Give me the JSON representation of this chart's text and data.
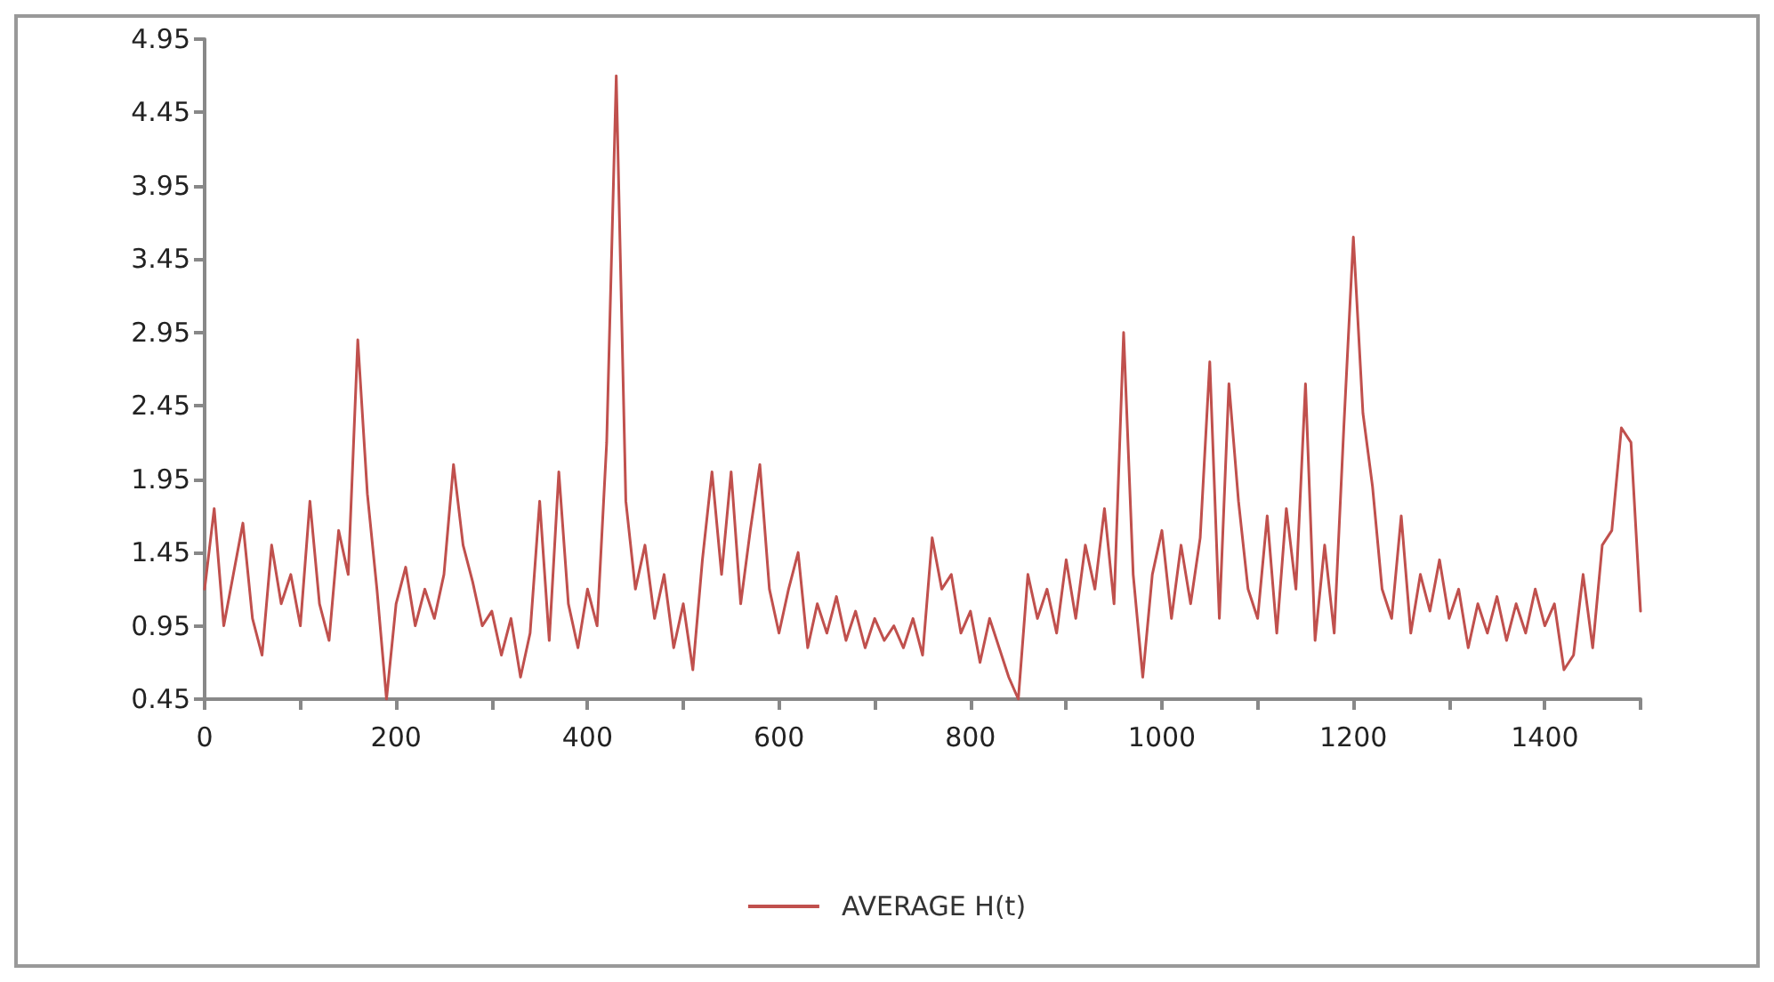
{
  "chart_data": {
    "type": "line",
    "x": [
      0,
      10,
      20,
      30,
      40,
      50,
      60,
      70,
      80,
      90,
      100,
      110,
      120,
      130,
      140,
      150,
      160,
      170,
      180,
      190,
      200,
      210,
      220,
      230,
      240,
      250,
      260,
      270,
      280,
      290,
      300,
      310,
      320,
      330,
      340,
      350,
      360,
      370,
      380,
      390,
      400,
      410,
      420,
      430,
      440,
      450,
      460,
      470,
      480,
      490,
      500,
      510,
      520,
      530,
      540,
      550,
      560,
      570,
      580,
      590,
      600,
      610,
      620,
      630,
      640,
      650,
      660,
      670,
      680,
      690,
      700,
      710,
      720,
      730,
      740,
      750,
      760,
      770,
      780,
      790,
      800,
      810,
      820,
      830,
      840,
      850,
      860,
      870,
      880,
      890,
      900,
      910,
      920,
      930,
      940,
      950,
      960,
      970,
      980,
      990,
      1000,
      1010,
      1020,
      1030,
      1040,
      1050,
      1060,
      1070,
      1080,
      1090,
      1100,
      1110,
      1120,
      1130,
      1140,
      1150,
      1160,
      1170,
      1180,
      1190,
      1200,
      1210,
      1220,
      1230,
      1240,
      1250,
      1260,
      1270,
      1280,
      1290,
      1300,
      1310,
      1320,
      1330,
      1340,
      1350,
      1360,
      1370,
      1380,
      1390,
      1400,
      1410,
      1420,
      1430,
      1440,
      1450,
      1460,
      1470,
      1480,
      1490,
      1500
    ],
    "series": [
      {
        "name": "AVERAGE H(t)",
        "color": "#c0504d",
        "values": [
          1.2,
          1.75,
          0.95,
          1.3,
          1.65,
          1.0,
          0.75,
          1.5,
          1.1,
          1.3,
          0.95,
          1.8,
          1.1,
          0.85,
          1.6,
          1.3,
          2.9,
          1.85,
          1.2,
          0.45,
          1.1,
          1.35,
          0.95,
          1.2,
          1.0,
          1.3,
          2.05,
          1.5,
          1.25,
          0.95,
          1.05,
          0.75,
          1.0,
          0.6,
          0.9,
          1.8,
          0.85,
          2.0,
          1.1,
          0.8,
          1.2,
          0.95,
          2.2,
          4.7,
          1.8,
          1.2,
          1.5,
          1.0,
          1.3,
          0.8,
          1.1,
          0.65,
          1.4,
          2.0,
          1.3,
          2.0,
          1.1,
          1.6,
          2.05,
          1.2,
          0.9,
          1.2,
          1.45,
          0.8,
          1.1,
          0.9,
          1.15,
          0.85,
          1.05,
          0.8,
          1.0,
          0.85,
          0.95,
          0.8,
          1.0,
          0.75,
          1.55,
          1.2,
          1.3,
          0.9,
          1.05,
          0.7,
          1.0,
          0.8,
          0.6,
          0.45,
          1.3,
          1.0,
          1.2,
          0.9,
          1.4,
          1.0,
          1.5,
          1.2,
          1.75,
          1.1,
          2.95,
          1.3,
          0.6,
          1.3,
          1.6,
          1.0,
          1.5,
          1.1,
          1.55,
          2.75,
          1.0,
          2.6,
          1.8,
          1.2,
          1.0,
          1.7,
          0.9,
          1.75,
          1.2,
          2.6,
          0.85,
          1.5,
          0.9,
          2.3,
          3.6,
          2.4,
          1.9,
          1.2,
          1.0,
          1.7,
          0.9,
          1.3,
          1.05,
          1.4,
          1.0,
          1.2,
          0.8,
          1.1,
          0.9,
          1.15,
          0.85,
          1.1,
          0.9,
          1.2,
          0.95,
          1.1,
          0.65,
          0.75,
          1.3,
          0.8,
          1.5,
          1.6,
          2.3,
          2.2,
          1.05
        ]
      }
    ],
    "xlim": [
      0,
      1500
    ],
    "xticks": [
      0,
      {
        "value": 100,
        "label": null
      },
      200,
      {
        "value": 300,
        "label": null
      },
      400,
      {
        "value": 500,
        "label": null
      },
      600,
      {
        "value": 700,
        "label": null
      },
      800,
      {
        "value": 900,
        "label": null
      },
      1000,
      {
        "value": 1100,
        "label": null
      },
      1200,
      {
        "value": 1300,
        "label": null
      },
      1400,
      {
        "value": 1500,
        "label": null
      }
    ],
    "ylim": [
      0.45,
      4.95
    ],
    "yticks": [
      0.45,
      0.95,
      1.45,
      1.95,
      2.45,
      2.95,
      3.45,
      3.95,
      4.45,
      4.95
    ],
    "grid": false,
    "legend": "bottom",
    "marker": "none",
    "line_style": "solid"
  }
}
